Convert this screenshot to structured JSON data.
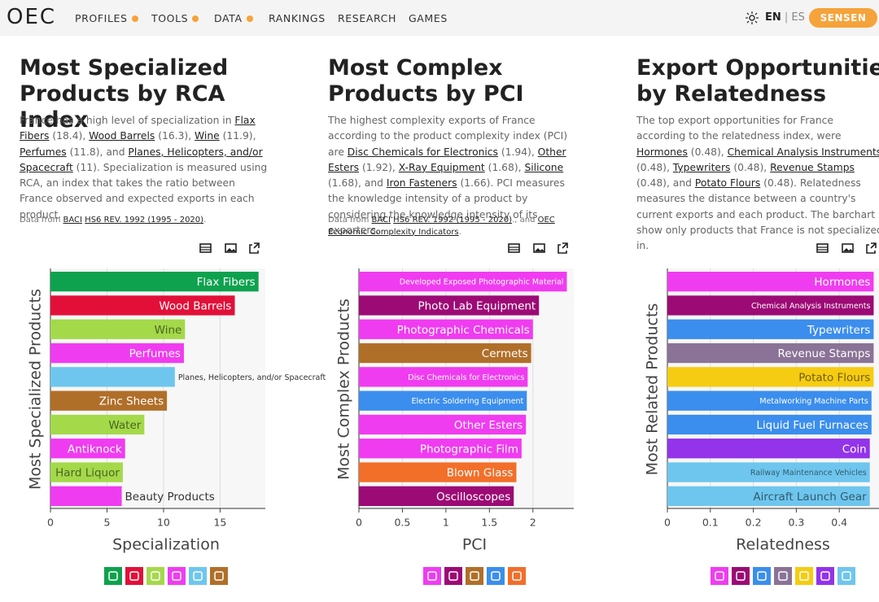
{
  "nav": {
    "logo": "OEC",
    "items": [
      "PROFILES",
      "TOOLS",
      "DATA",
      "RANKINGS",
      "RESEARCH",
      "GAMES"
    ],
    "lang_active": "EN",
    "lang_other": "ES",
    "user": "SENSEN"
  },
  "panels": [
    {
      "title": "Most Specialized Products by RCA Index",
      "description": [
        {
          "text": "France has a high level of specialization in "
        },
        {
          "link": "Flax Fibers"
        },
        {
          "text": " (18.4), "
        },
        {
          "link": "Wood Barrels"
        },
        {
          "text": " (16.3), "
        },
        {
          "link": "Wine"
        },
        {
          "text": " (11.9), "
        },
        {
          "link": "Perfumes"
        },
        {
          "text": " (11.8), and "
        },
        {
          "link": "Planes, Helicopters, and/or Spacecraft"
        },
        {
          "text": " (11). Specialization is measured using RCA, an index that takes the ratio between France observed and expected exports in each product."
        }
      ],
      "source": [
        {
          "text": "Data from "
        },
        {
          "link": "BACI"
        },
        {
          "text": " "
        },
        {
          "link": "HS6 REV. 1992 (1995 - 2020)"
        },
        {
          "text": "."
        }
      ]
    },
    {
      "title": "Most Complex Products by PCI",
      "description": [
        {
          "text": "The highest complexity exports of France according to the product complexity index (PCI) are "
        },
        {
          "link": "Disc Chemicals for Electronics"
        },
        {
          "text": " (1.94), "
        },
        {
          "link": "Other Esters"
        },
        {
          "text": " (1.92), "
        },
        {
          "link": "X-Ray Equipment"
        },
        {
          "text": " (1.68), "
        },
        {
          "link": "Silicone"
        },
        {
          "text": " (1.68), and "
        },
        {
          "link": "Iron Fasteners"
        },
        {
          "text": " (1.66). PCI measures the knowledge intensity of a product by considering the knowledge intensity of its exporters."
        }
      ],
      "source": [
        {
          "text": "Data from "
        },
        {
          "link": "BACI"
        },
        {
          "text": " "
        },
        {
          "link": "HS6 REV. 1992 (1995 - 2020)"
        },
        {
          "text": "., and "
        },
        {
          "link": "OEC"
        },
        {
          "text": " "
        },
        {
          "link": "Economic Complexity Indicators"
        },
        {
          "text": "."
        }
      ]
    },
    {
      "title": "Export Opportunities by Relatedness",
      "description": [
        {
          "text": "The top export opportunities for France according to the relatedness index, were "
        },
        {
          "link": "Hormones"
        },
        {
          "text": " (0.48), "
        },
        {
          "link": "Chemical Analysis Instruments"
        },
        {
          "text": " (0.48), "
        },
        {
          "link": "Typewriters"
        },
        {
          "text": " (0.48), "
        },
        {
          "link": "Revenue Stamps"
        },
        {
          "text": " (0.48), and "
        },
        {
          "link": "Potato Flours"
        },
        {
          "text": " (0.48). Relatedness measures the distance between a country's current exports and each product. The barchart show only products that France is not specialized in."
        }
      ]
    }
  ],
  "chart_data": [
    {
      "type": "bar",
      "orientation": "horizontal",
      "x_label": "Specialization",
      "y_label": "Most Specialized Products",
      "categories": [
        "Flax Fibers",
        "Wood Barrels",
        "Wine",
        "Perfumes",
        "Planes, Helicopters, and/or Spacecraft",
        "Zinc Sheets",
        "Water",
        "Antiknock",
        "Hard Liquor",
        "Beauty Products"
      ],
      "values": [
        18.4,
        16.3,
        11.9,
        11.8,
        11,
        10.3,
        8.3,
        6.6,
        6.4,
        6.3
      ],
      "colors": [
        "#0ea24e",
        "#e21039",
        "#a4d94a",
        "#f03cf0",
        "#6ec6ee",
        "#b06f29",
        "#a4d94a",
        "#f03cf0",
        "#a4d94a",
        "#f03cf0"
      ],
      "xlim": [
        0,
        19
      ],
      "xticks": [
        0,
        5,
        10,
        15
      ],
      "grid": true
    },
    {
      "type": "bar",
      "orientation": "horizontal",
      "x_label": "PCI",
      "y_label": "Most Complex Products",
      "categories": [
        "Developed Exposed Photographic Material",
        "Photo Lab Equipment",
        "Photographic Chemicals",
        "Cermets",
        "Disc Chemicals for Electronics",
        "Electric Soldering Equipment",
        "Other Esters",
        "Photographic Film",
        "Blown Glass",
        "Oscilloscopes"
      ],
      "values": [
        2.39,
        2.07,
        2.0,
        1.98,
        1.94,
        1.93,
        1.92,
        1.87,
        1.81,
        1.78
      ],
      "colors": [
        "#f03cf0",
        "#9c0a75",
        "#f03cf0",
        "#b06f29",
        "#f03cf0",
        "#3b8eed",
        "#f03cf0",
        "#f03cf0",
        "#f26f2a",
        "#9c0a75"
      ],
      "xlim": [
        0,
        2.47
      ],
      "xticks": [
        0,
        0.5,
        1,
        1.5,
        2
      ],
      "grid": true
    },
    {
      "type": "bar",
      "orientation": "horizontal",
      "x_label": "Relatedness",
      "y_label": "Most Related Products",
      "categories": [
        "Hormones",
        "Chemical Analysis Instruments",
        "Typewriters",
        "Revenue Stamps",
        "Potato Flours",
        "Metalworking Machine Parts",
        "Liquid Fuel Furnaces",
        "Coin",
        "Railway Maintenance Vehicles",
        "Aircraft Launch Gear"
      ],
      "values": [
        0.48,
        0.48,
        0.48,
        0.48,
        0.48,
        0.475,
        0.475,
        0.471,
        0.471,
        0.471
      ],
      "colors": [
        "#f03cf0",
        "#9c0a75",
        "#3b8eed",
        "#8a7396",
        "#f5cc12",
        "#3b8eed",
        "#3b8eed",
        "#9333ea",
        "#6ec6ee",
        "#6ec6ee"
      ],
      "xlim": [
        0,
        0.5
      ],
      "xticks": [
        0,
        0.1,
        0.2,
        0.3,
        0.4
      ],
      "grid": true
    }
  ]
}
